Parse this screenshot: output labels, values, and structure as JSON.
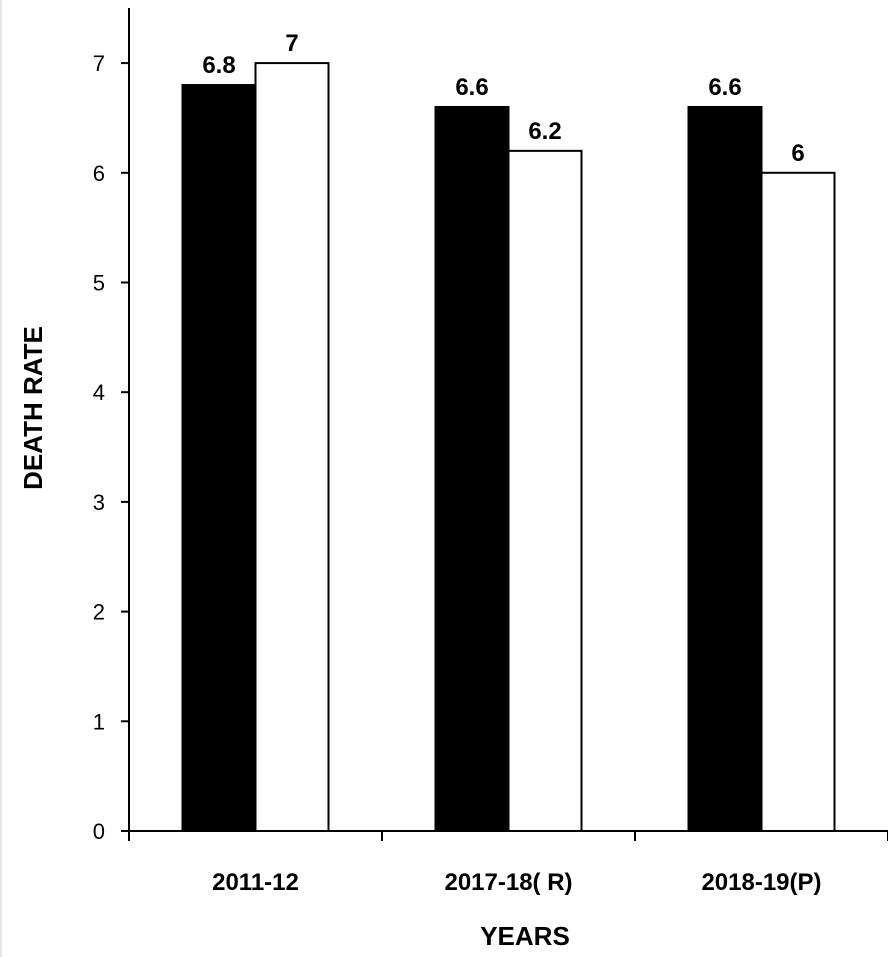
{
  "chart_data": {
    "type": "bar",
    "categories": [
      "2011-12",
      "2017-18( R)",
      "2018-19(P)"
    ],
    "series": [
      {
        "values": [
          6.8,
          6.6,
          6.6
        ],
        "color": "#000000"
      },
      {
        "values": [
          7,
          6.2,
          6
        ],
        "color": "#ffffff"
      }
    ],
    "data_labels": [
      [
        "6.8",
        "6.6",
        "6.6"
      ],
      [
        "7",
        "6.2",
        "6"
      ]
    ],
    "xlabel": "YEARS",
    "ylabel": "DEATH RATE",
    "ylim": [
      0,
      7
    ],
    "yticks": [
      "0",
      "1",
      "2",
      "3",
      "4",
      "5",
      "6",
      "7"
    ],
    "grid": false,
    "legend": "none"
  }
}
